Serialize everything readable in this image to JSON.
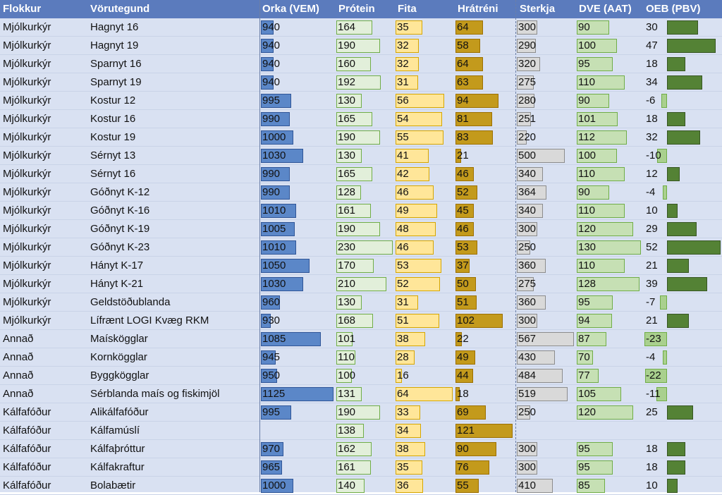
{
  "headers": {
    "flokkur": "Flokkur",
    "vorutegund": "Vörutegund",
    "orka": "Orka (VEM)",
    "protein": "Prótein",
    "fita": "Fita",
    "hratreni": "Hrátréni",
    "sterkja": "Sterkja",
    "dve": "DVE (AAT)",
    "oeb": "OEB (PBV)"
  },
  "colors": {
    "header_bg": "#5b7bbd",
    "orka": "#5b87c8",
    "protein": "#e2efda",
    "fita": "#ffe699",
    "hratreni": "#c39a1c",
    "sterkja": "#d9d9d9",
    "dve": "#c6e0b4",
    "oeb_pos": "#548235",
    "oeb_neg": "#a9d08e"
  },
  "rows": [
    {
      "flokkur": "Mjólkurkýr",
      "vorutegund": "Hagnyt 16",
      "orka": "940",
      "protein": "164",
      "fita": "35",
      "hratreni": "64",
      "sterkja": "300",
      "dve": "90",
      "oeb": "30"
    },
    {
      "flokkur": "Mjólkurkýr",
      "vorutegund": "Hagnyt 19",
      "orka": "940",
      "protein": "190",
      "fita": "32",
      "hratreni": "58",
      "sterkja": "290",
      "dve": "100",
      "oeb": "47"
    },
    {
      "flokkur": "Mjólkurkýr",
      "vorutegund": "Sparnyt 16",
      "orka": "940",
      "protein": "160",
      "fita": "32",
      "hratreni": "64",
      "sterkja": "320",
      "dve": "95",
      "oeb": "18"
    },
    {
      "flokkur": "Mjólkurkýr",
      "vorutegund": "Sparnyt 19",
      "orka": "940",
      "protein": "192",
      "fita": "31",
      "hratreni": "63",
      "sterkja": "275",
      "dve": "110",
      "oeb": "34"
    },
    {
      "flokkur": "Mjólkurkýr",
      "vorutegund": "Kostur 12",
      "orka": "995",
      "protein": "130",
      "fita": "56",
      "hratreni": "94",
      "sterkja": "280",
      "dve": "90",
      "oeb": "-6"
    },
    {
      "flokkur": "Mjólkurkýr",
      "vorutegund": "Kostur 16",
      "orka": "990",
      "protein": "165",
      "fita": "54",
      "hratreni": "81",
      "sterkja": "251",
      "dve": "101",
      "oeb": "18"
    },
    {
      "flokkur": "Mjólkurkýr",
      "vorutegund": "Kostur 19",
      "orka": "1000",
      "protein": "190",
      "fita": "55",
      "hratreni": "83",
      "sterkja": "220",
      "dve": "112",
      "oeb": "32"
    },
    {
      "flokkur": "Mjólkurkýr",
      "vorutegund": "Sérnyt 13",
      "orka": "1030",
      "protein": "130",
      "fita": "41",
      "hratreni": "21",
      "sterkja": "500",
      "dve": "100",
      "oeb": "-10"
    },
    {
      "flokkur": "Mjólkurkýr",
      "vorutegund": "Sérnyt 16",
      "orka": "990",
      "protein": "165",
      "fita": "42",
      "hratreni": "46",
      "sterkja": "340",
      "dve": "110",
      "oeb": "12"
    },
    {
      "flokkur": "Mjólkurkýr",
      "vorutegund": "Góðnyt K-12",
      "orka": "990",
      "protein": "128",
      "fita": "46",
      "hratreni": "52",
      "sterkja": "364",
      "dve": "90",
      "oeb": "-4"
    },
    {
      "flokkur": "Mjólkurkýr",
      "vorutegund": "Góðnyt K-16",
      "orka": "1010",
      "protein": "161",
      "fita": "49",
      "hratreni": "45",
      "sterkja": "340",
      "dve": "110",
      "oeb": "10"
    },
    {
      "flokkur": "Mjólkurkýr",
      "vorutegund": "Góðnyt K-19",
      "orka": "1005",
      "protein": "190",
      "fita": "48",
      "hratreni": "46",
      "sterkja": "300",
      "dve": "120",
      "oeb": "29"
    },
    {
      "flokkur": "Mjólkurkýr",
      "vorutegund": "Góðnyt K-23",
      "orka": "1010",
      "protein": "230",
      "fita": "46",
      "hratreni": "53",
      "sterkja": "250",
      "dve": "130",
      "oeb": "52"
    },
    {
      "flokkur": "Mjólkurkýr",
      "vorutegund": "Hányt K-17",
      "orka": "1050",
      "protein": "170",
      "fita": "53",
      "hratreni": "37",
      "sterkja": "360",
      "dve": "110",
      "oeb": "21"
    },
    {
      "flokkur": "Mjólkurkýr",
      "vorutegund": "Hányt K-21",
      "orka": "1030",
      "protein": "210",
      "fita": "52",
      "hratreni": "50",
      "sterkja": "275",
      "dve": "128",
      "oeb": "39"
    },
    {
      "flokkur": "Mjólkurkýr",
      "vorutegund": "Geldstöðublanda",
      "orka": "960",
      "protein": "130",
      "fita": "31",
      "hratreni": "51",
      "sterkja": "360",
      "dve": "95",
      "oeb": "-7"
    },
    {
      "flokkur": "Mjólkurkýr",
      "vorutegund": "Lífrænt LOGI Kvæg RKM",
      "orka": "930",
      "protein": "168",
      "fita": "51",
      "hratreni": "102",
      "sterkja": "300",
      "dve": "94",
      "oeb": "21"
    },
    {
      "flokkur": "Annað",
      "vorutegund": "Maískögglar",
      "orka": "1085",
      "protein": "101",
      "fita": "38",
      "hratreni": "22",
      "sterkja": "567",
      "dve": "87",
      "oeb": "-23"
    },
    {
      "flokkur": "Annað",
      "vorutegund": "Kornkögglar",
      "orka": "945",
      "protein": "110",
      "fita": "28",
      "hratreni": "49",
      "sterkja": "430",
      "dve": "70",
      "oeb": "-4"
    },
    {
      "flokkur": "Annað",
      "vorutegund": "Byggkögglar",
      "orka": "950",
      "protein": "100",
      "fita": "16",
      "hratreni": "44",
      "sterkja": "484",
      "dve": "77",
      "oeb": "-22"
    },
    {
      "flokkur": "Annað",
      "vorutegund": "Sérblanda maís og fiskimjöl",
      "orka": "1125",
      "protein": "131",
      "fita": "64",
      "hratreni": "18",
      "sterkja": "519",
      "dve": "105",
      "oeb": "-11"
    },
    {
      "flokkur": "Kálfafóður",
      "vorutegund": "Alikálfafóður",
      "orka": "995",
      "protein": "190",
      "fita": "33",
      "hratreni": "69",
      "sterkja": "250",
      "dve": "120",
      "oeb": "25"
    },
    {
      "flokkur": "Kálfafóður",
      "vorutegund": "Kálfamúslí",
      "orka": "",
      "protein": "138",
      "fita": "34",
      "hratreni": "121",
      "sterkja": "",
      "dve": "",
      "oeb": ""
    },
    {
      "flokkur": "Kálfafóður",
      "vorutegund": "Kálfaþróttur",
      "orka": "970",
      "protein": "162",
      "fita": "38",
      "hratreni": "90",
      "sterkja": "300",
      "dve": "95",
      "oeb": "18"
    },
    {
      "flokkur": "Kálfafóður",
      "vorutegund": "Kálfakraftur",
      "orka": "965",
      "protein": "161",
      "fita": "35",
      "hratreni": "76",
      "sterkja": "300",
      "dve": "95",
      "oeb": "18"
    },
    {
      "flokkur": "Kálfafóður",
      "vorutegund": "Bolabætir",
      "orka": "1000",
      "protein": "140",
      "fita": "36",
      "hratreni": "55",
      "sterkja": "410",
      "dve": "85",
      "oeb": "10"
    }
  ]
}
